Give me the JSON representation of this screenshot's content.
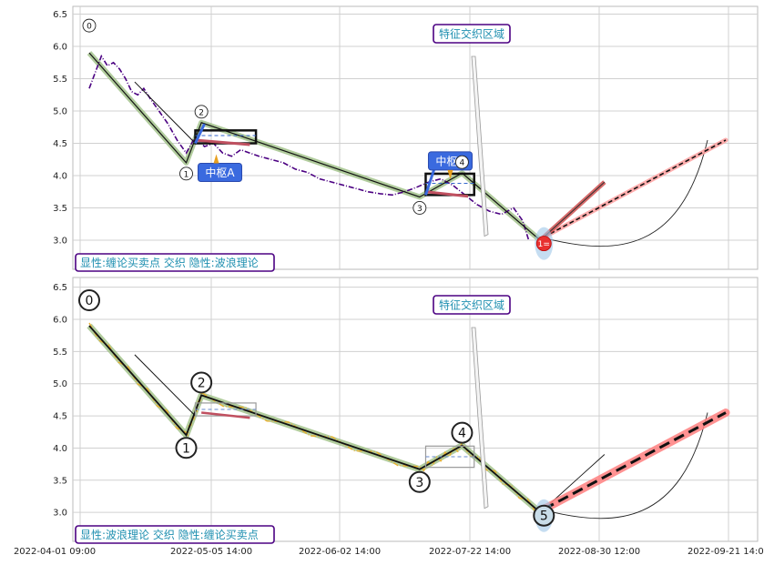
{
  "chart_data": [
    {
      "type": "line",
      "panel": "top",
      "y_ticks": [
        "6.5",
        "6.0",
        "5.5",
        "5.0",
        "4.5",
        "4.0",
        "3.5",
        "3.0"
      ],
      "ylim": [
        2.55,
        6.62
      ],
      "grid": true,
      "price_color": "#4b0082",
      "price_style": "dash-dot",
      "price_series": [
        [
          0,
          5.35
        ],
        [
          2,
          5.6
        ],
        [
          4,
          5.85
        ],
        [
          6,
          5.7
        ],
        [
          8,
          5.75
        ],
        [
          10,
          5.65
        ],
        [
          12,
          5.5
        ],
        [
          14,
          5.3
        ],
        [
          16,
          5.25
        ],
        [
          18,
          5.35
        ],
        [
          20,
          5.2
        ],
        [
          23,
          5.0
        ],
        [
          26,
          4.8
        ],
        [
          29,
          4.55
        ],
        [
          32,
          4.35
        ],
        [
          35,
          4.6
        ],
        [
          38,
          4.45
        ],
        [
          41,
          4.5
        ],
        [
          44,
          4.35
        ],
        [
          47,
          4.3
        ],
        [
          50,
          4.4
        ],
        [
          53,
          4.35
        ],
        [
          56,
          4.3
        ],
        [
          60,
          4.25
        ],
        [
          64,
          4.2
        ],
        [
          68,
          4.1
        ],
        [
          72,
          4.05
        ],
        [
          76,
          3.95
        ],
        [
          80,
          3.9
        ],
        [
          84,
          3.85
        ],
        [
          88,
          3.8
        ],
        [
          92,
          3.75
        ],
        [
          96,
          3.72
        ],
        [
          100,
          3.7
        ],
        [
          104,
          3.75
        ],
        [
          108,
          3.82
        ],
        [
          112,
          3.9
        ],
        [
          116,
          3.95
        ],
        [
          120,
          3.85
        ],
        [
          124,
          3.7
        ],
        [
          128,
          3.55
        ],
        [
          132,
          3.45
        ],
        [
          136,
          3.4
        ],
        [
          140,
          3.5
        ],
        [
          143,
          3.3
        ],
        [
          145,
          3.0
        ]
      ],
      "pivots": [
        {
          "label": "0",
          "x": 0,
          "y": 5.9
        },
        {
          "label": "1",
          "x": 32,
          "y": 4.2
        },
        {
          "label": "2",
          "x": 37,
          "y": 4.82
        },
        {
          "label": "3",
          "x": 109,
          "y": 3.67
        },
        {
          "label": "4",
          "x": 123,
          "y": 4.04
        },
        {
          "label": "1=",
          "x": 150,
          "y": 2.95
        }
      ],
      "center_boxes": [
        {
          "name": "中枢A",
          "x0": 35,
          "x1": 55,
          "y0": 4.5,
          "y1": 4.7,
          "dash_y": 4.62
        },
        {
          "name": "中枢B",
          "x0": 111,
          "x1": 127,
          "y0": 3.7,
          "y1": 4.03,
          "dash_y": 3.88
        }
      ],
      "center_labels": [
        "中枢A",
        "中枢B"
      ],
      "zone_label": "特征交织区域",
      "legend": "显性:缠论买卖点 交织 隐性:波浪理论",
      "projections": [
        {
          "style": "dashed",
          "color": "#ffa0a0",
          "from": [
            150,
            3.05
          ],
          "to": [
            210,
            4.55
          ]
        },
        {
          "style": "solid",
          "color": "#d05050",
          "from": [
            150,
            3.05
          ],
          "to": [
            170,
            3.9
          ]
        }
      ]
    },
    {
      "type": "line",
      "panel": "bottom",
      "y_ticks": [
        "6.5",
        "6.0",
        "5.5",
        "5.0",
        "4.5",
        "4.0",
        "3.5",
        "3.0"
      ],
      "ylim": [
        2.55,
        6.65
      ],
      "grid": true,
      "price_color": "#e8b030",
      "price_style": "dash-dot",
      "pivots": [
        {
          "label": "0",
          "x": 0,
          "y": 5.9
        },
        {
          "label": "1",
          "x": 32,
          "y": 4.2
        },
        {
          "label": "2",
          "x": 37,
          "y": 4.82
        },
        {
          "label": "3",
          "x": 109,
          "y": 3.67
        },
        {
          "label": "4",
          "x": 123,
          "y": 4.04
        },
        {
          "label": "5",
          "x": 150,
          "y": 2.95
        }
      ],
      "zone_label": "特征交织区域",
      "legend": "显性:波浪理论 交织 隐性:缠论买卖点",
      "projections": [
        {
          "style": "dashed",
          "color": "#ff8080",
          "from": [
            150,
            3.05
          ],
          "to": [
            210,
            4.55
          ]
        }
      ]
    }
  ],
  "x_axis": {
    "tick_labels": [
      "2022-04-01 09:00",
      "2022-05-05 14:00",
      "2022-06-02 14:00",
      "2022-07-22 14:00",
      "2022-08-30 12:00",
      "2022-09-21 14:00"
    ]
  }
}
